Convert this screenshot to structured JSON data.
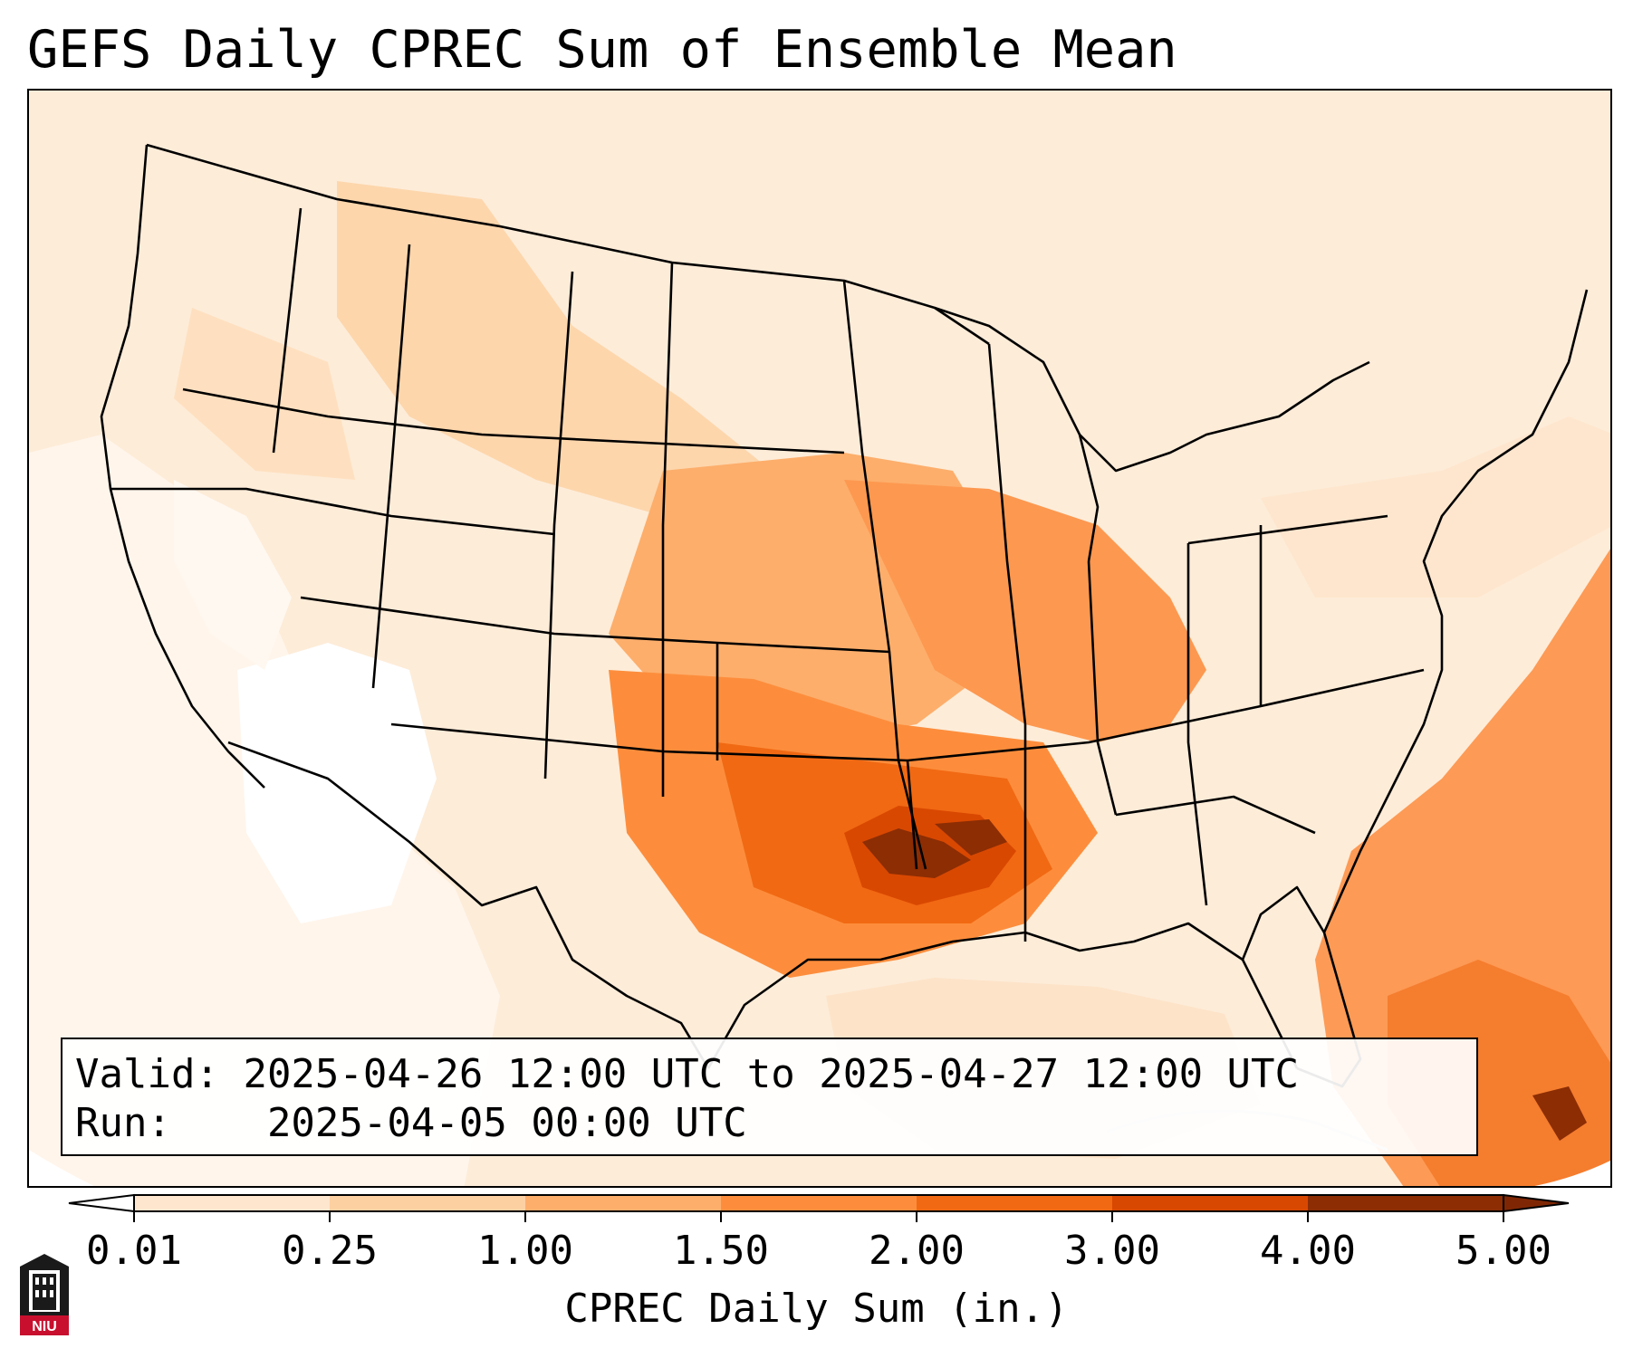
{
  "title": "GEFS Daily CPREC Sum of Ensemble Mean",
  "info": {
    "valid_label": "Valid:",
    "valid_value": "2025-04-26 12:00 UTC to 2025-04-27 12:00 UTC",
    "run_label": "Run:",
    "run_value": "2025-04-05 00:00 UTC"
  },
  "colorbar": {
    "label": "CPREC Daily Sum (in.)",
    "ticks": [
      "0.01",
      "0.25",
      "1.00",
      "1.50",
      "2.00",
      "3.00",
      "4.00",
      "5.00"
    ],
    "colors": [
      "#fff5eb",
      "#fee6ce",
      "#fdd0a2",
      "#fdae6b",
      "#fd8d3c",
      "#f16913",
      "#d94801",
      "#8c2d04"
    ],
    "under_color": "#ffffff",
    "over_color": "#7f2704"
  },
  "map": {
    "projection": "Lambert Conformal (CONUS)",
    "region": "Contiguous United States, southern Canada, northern Mexico, Gulf of Mexico, western Caribbean",
    "max_precip_area": "Eastern Oklahoma, north Texas, Arkansas, northern Louisiana and Mississippi",
    "secondary_max_area": "Western Atlantic east of Florida and Cuba / Bahamas"
  },
  "logo": {
    "text": "NIU",
    "colors": {
      "red": "#c8102e",
      "black": "#000000"
    }
  }
}
